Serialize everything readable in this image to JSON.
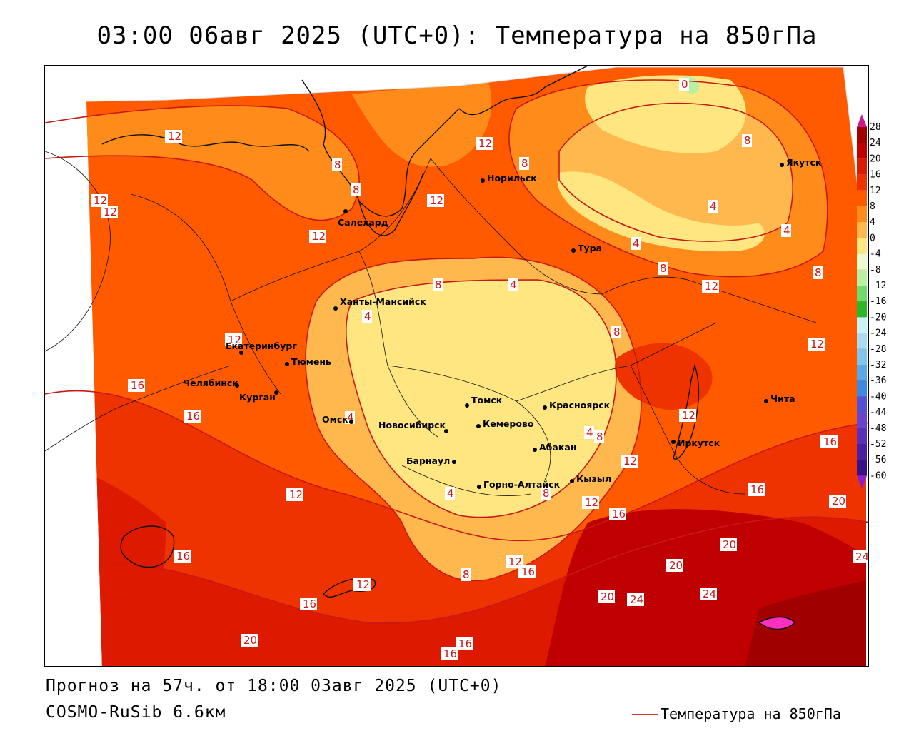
{
  "title": "03:00 06авг 2025 (UTC+0): Температура на 850гПа",
  "footer": {
    "forecast": "Прогноз на 57ч. от 18:00 03авг 2025 (UTC+0)",
    "model": "COSMO-RuSib 6.6км"
  },
  "legend": {
    "label": "Температура на 850гПа",
    "line_color": "#e03030"
  },
  "colorbar": {
    "levels": [
      "28",
      "24",
      "20",
      "16",
      "12",
      "8",
      "4",
      "0",
      "-4",
      "-8",
      "-12",
      "-16",
      "-20",
      "-24",
      "-28",
      "-32",
      "-36",
      "-40",
      "-44",
      "-48",
      "-52",
      "-56",
      "-60"
    ],
    "colors": [
      "#a00000",
      "#c00000",
      "#dd1a00",
      "#ee3300",
      "#ff5a00",
      "#ff8c1a",
      "#ffb84d",
      "#ffe680",
      "#eafccf",
      "#b6f0a0",
      "#6ddc6d",
      "#28b828",
      "#c8f4f8",
      "#a8dcf4",
      "#80c4f0",
      "#58a8ec",
      "#3a8ae4",
      "#5050d8",
      "#6a44cc",
      "#5a30b8",
      "#4a20a0",
      "#3a1088",
      "#ff30c0"
    ]
  },
  "cities": [
    {
      "name": "Якутск"
    },
    {
      "name": "Норильск"
    },
    {
      "name": "Салехард"
    },
    {
      "name": "Тура"
    },
    {
      "name": "Ханты-Мансийск"
    },
    {
      "name": "Екатеринбург"
    },
    {
      "name": "Тюмень"
    },
    {
      "name": "Челябинск"
    },
    {
      "name": "Курган"
    },
    {
      "name": "Омск"
    },
    {
      "name": "Томск"
    },
    {
      "name": "Красноярск"
    },
    {
      "name": "Новосибирск"
    },
    {
      "name": "Кемерово"
    },
    {
      "name": "Абакан"
    },
    {
      "name": "Барнаул"
    },
    {
      "name": "Горно-Алтайск"
    },
    {
      "name": "Кызыл"
    },
    {
      "name": "Иркутск"
    },
    {
      "name": "Чита"
    }
  ],
  "contour_labels": [
    "0",
    "4",
    "8",
    "12",
    "16",
    "20",
    "24"
  ]
}
